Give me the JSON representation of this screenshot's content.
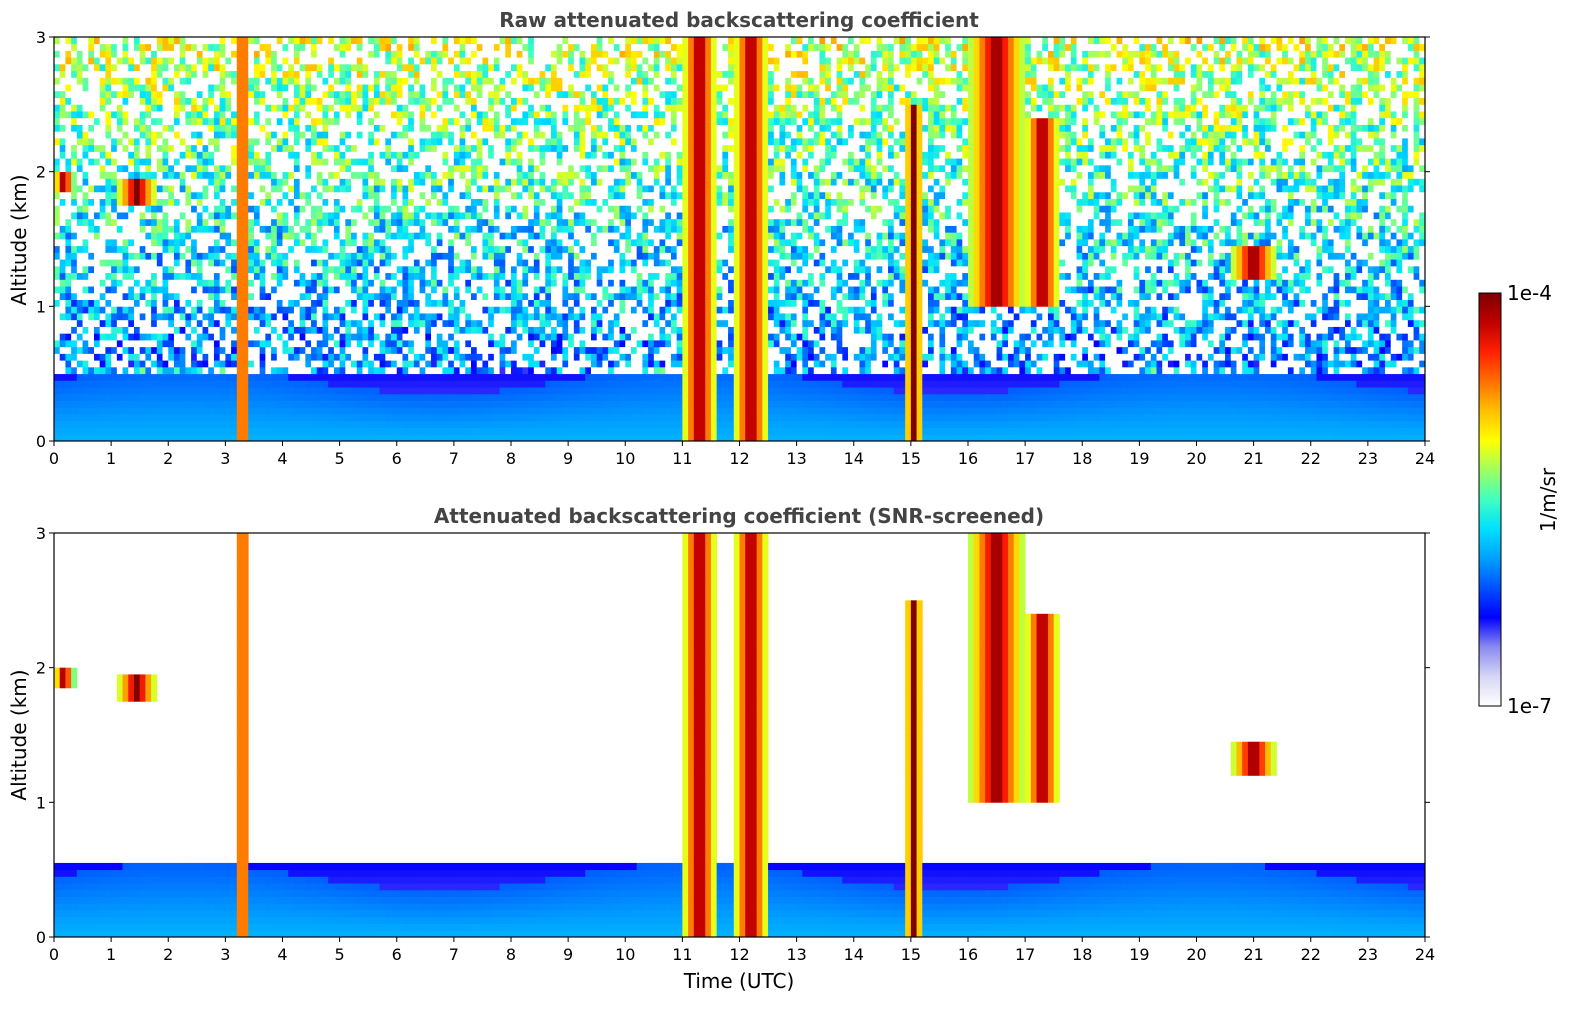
{
  "chart_data": [
    {
      "type": "heatmap",
      "title": "Raw attenuated backscattering coefficient",
      "xlabel": "",
      "ylabel": "Altitude (km)",
      "xlim": [
        0,
        24
      ],
      "ylim": [
        0,
        3
      ],
      "xticks": [
        "0",
        "1",
        "2",
        "3",
        "4",
        "5",
        "6",
        "7",
        "8",
        "9",
        "10",
        "11",
        "12",
        "13",
        "14",
        "15",
        "16",
        "17",
        "18",
        "19",
        "20",
        "21",
        "22",
        "23",
        "24"
      ],
      "yticks": [
        "0",
        "1",
        "2",
        "3"
      ],
      "features": [
        {
          "kind": "boundary_layer",
          "x": [
            0,
            24
          ],
          "top_km": [
            0.45,
            0.45
          ]
        },
        {
          "kind": "cloud_column",
          "x": [
            11.0,
            11.6
          ],
          "alt": [
            0,
            3
          ]
        },
        {
          "kind": "cloud_column",
          "x": [
            11.9,
            12.5
          ],
          "alt": [
            0,
            3
          ]
        },
        {
          "kind": "cloud_column",
          "x": [
            14.9,
            15.2
          ],
          "alt": [
            0,
            2.5
          ]
        },
        {
          "kind": "cloud_streak",
          "x": [
            16.0,
            17.0
          ],
          "alt": [
            1.0,
            3.0
          ]
        },
        {
          "kind": "cloud_streak",
          "x": [
            17.0,
            17.6
          ],
          "alt": [
            1.0,
            2.4
          ]
        },
        {
          "kind": "cloud_column",
          "x": [
            3.2,
            3.4
          ],
          "alt": [
            0,
            3
          ]
        },
        {
          "kind": "cloud_patch",
          "x": [
            0.0,
            0.35
          ],
          "alt": [
            1.85,
            2.0
          ]
        },
        {
          "kind": "cloud_patch",
          "x": [
            1.1,
            1.8
          ],
          "alt": [
            1.75,
            1.95
          ]
        },
        {
          "kind": "cloud_patch",
          "x": [
            20.6,
            21.4
          ],
          "alt": [
            1.2,
            1.45
          ]
        }
      ]
    },
    {
      "type": "heatmap",
      "title": "Attenuated backscattering coefficient (SNR-screened)",
      "xlabel": "Time (UTC)",
      "ylabel": "Altitude (km)",
      "xlim": [
        0,
        24
      ],
      "ylim": [
        0,
        3
      ],
      "xticks": [
        "0",
        "1",
        "2",
        "3",
        "4",
        "5",
        "6",
        "7",
        "8",
        "9",
        "10",
        "11",
        "12",
        "13",
        "14",
        "15",
        "16",
        "17",
        "18",
        "19",
        "20",
        "21",
        "22",
        "23",
        "24"
      ],
      "yticks": [
        "0",
        "1",
        "2",
        "3"
      ]
    }
  ],
  "colorbar": {
    "min_label": "1e-7",
    "max_label": "1e-4",
    "unit_label": "1/m/sr",
    "scale": "log",
    "colormap": [
      "#ffffff",
      "#d6d6f5",
      "#8a8af0",
      "#0000ff",
      "#0050ff",
      "#00a0ff",
      "#00e0ff",
      "#40ffc0",
      "#a0ff60",
      "#ffff00",
      "#ffc000",
      "#ff7000",
      "#ff2000",
      "#c00000",
      "#7f0000"
    ]
  }
}
